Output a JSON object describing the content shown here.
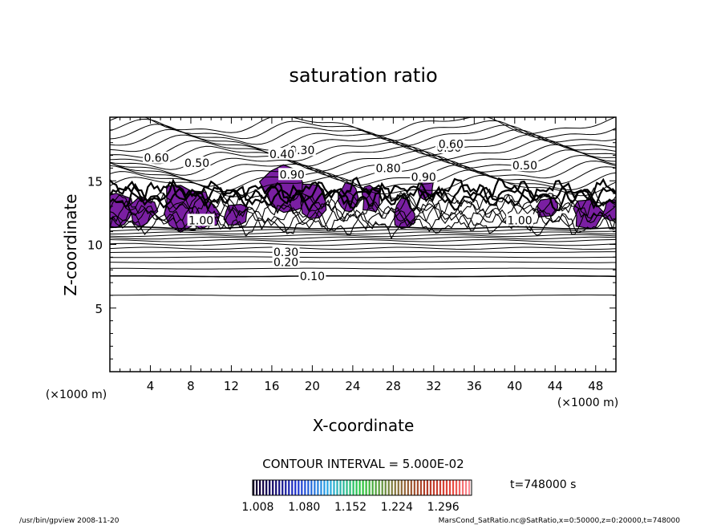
{
  "chart_data": {
    "type": "contour",
    "title": "saturation ratio",
    "xlabel": "X-coordinate",
    "ylabel": "Z-coordinate",
    "x_unit": "(×1000 m)",
    "y_unit": "(×1000 m)",
    "xlim": [
      0,
      50
    ],
    "ylim": [
      0,
      20
    ],
    "x_ticks": [
      4,
      8,
      12,
      16,
      20,
      24,
      28,
      32,
      36,
      40,
      44,
      48
    ],
    "y_ticks": [
      5,
      10,
      15
    ],
    "grid": false,
    "contour_interval_text": "CONTOUR INTERVAL = 5.000E-02",
    "time_text": "t=748000 s",
    "colorbar": {
      "range": [
        1.0,
        1.34
      ],
      "tick_values": [
        1.008,
        1.08,
        1.152,
        1.224,
        1.296
      ],
      "tick_labels": [
        "1.008",
        "1.080",
        "1.152",
        "1.224",
        "1.296"
      ]
    },
    "fill_color": "#7a1fa2",
    "contour_labels": [
      {
        "text": "0.10",
        "x": 20.0,
        "z": 7.5
      },
      {
        "text": "0.20",
        "x": 17.4,
        "z": 8.6
      },
      {
        "text": "0.30",
        "x": 17.4,
        "z": 9.4
      },
      {
        "text": "0.30",
        "x": 19.0,
        "z": 17.4
      },
      {
        "text": "0.30",
        "x": 33.5,
        "z": 17.6
      },
      {
        "text": "0.40",
        "x": 17.0,
        "z": 17.1
      },
      {
        "text": "0.50",
        "x": 8.6,
        "z": 16.4
      },
      {
        "text": "0.50",
        "x": 41.0,
        "z": 16.2
      },
      {
        "text": "0.60",
        "x": 4.6,
        "z": 16.8
      },
      {
        "text": "0.60",
        "x": 33.7,
        "z": 17.9
      },
      {
        "text": "0.80",
        "x": 27.5,
        "z": 16.0
      },
      {
        "text": "0.90",
        "x": 18.0,
        "z": 15.5
      },
      {
        "text": "0.90",
        "x": 31.0,
        "z": 15.3
      },
      {
        "text": "1.00",
        "x": 9.0,
        "z": 11.9
      },
      {
        "text": "1.00",
        "x": 40.5,
        "z": 11.9
      }
    ]
  },
  "footer": {
    "left": "/usr/bin/gpview   2008-11-20",
    "right": "MarsCond_SatRatio.nc@SatRatio,x=0:50000,z=0:20000,t=748000"
  }
}
